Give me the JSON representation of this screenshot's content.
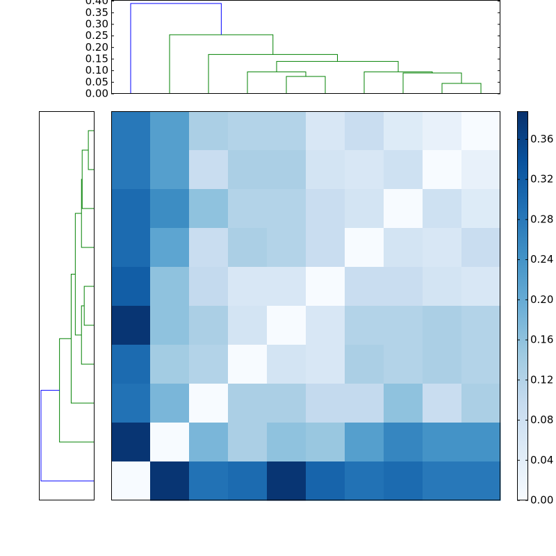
{
  "chart_data": [
    {
      "type": "dendrogram",
      "sides": [
        "top",
        "left"
      ],
      "icoord": [
        [
          45,
          45,
          55,
          55
        ],
        [
          35,
          35,
          50,
          50
        ],
        [
          85,
          85,
          95,
          95
        ],
        [
          75,
          75,
          90,
          90
        ],
        [
          65,
          65,
          82.5,
          82.5
        ],
        [
          42.5,
          42.5,
          73.75,
          73.75
        ],
        [
          25,
          25,
          58.125,
          58.125
        ],
        [
          15,
          15,
          41.5625,
          41.5625
        ],
        [
          5,
          5,
          28.28125,
          28.28125
        ]
      ],
      "dcoord": [
        [
          0,
          0.075,
          0.075,
          0
        ],
        [
          0,
          0.095,
          0.095,
          0.075
        ],
        [
          0,
          0.045,
          0.045,
          0
        ],
        [
          0,
          0.09,
          0.09,
          0.045
        ],
        [
          0,
          0.095,
          0.095,
          0.09
        ],
        [
          0.095,
          0.14,
          0.14,
          0.095
        ],
        [
          0,
          0.17,
          0.17,
          0.14
        ],
        [
          0,
          0.255,
          0.255,
          0.17
        ],
        [
          0,
          0.39,
          0.39,
          0.255
        ]
      ],
      "colors": [
        "#008000",
        "#008000",
        "#008000",
        "#008000",
        "#008000",
        "#008000",
        "#008000",
        "#008000",
        "#0000ff"
      ],
      "ylim": [
        0,
        0.405
      ],
      "yticks": [
        {
          "value": 0,
          "label": "0.00"
        },
        {
          "value": 0.05,
          "label": "0.05"
        },
        {
          "value": 0.1,
          "label": "0.10"
        },
        {
          "value": 0.15,
          "label": "0.15"
        },
        {
          "value": 0.2,
          "label": "0.20"
        },
        {
          "value": 0.25,
          "label": "0.25"
        },
        {
          "value": 0.3,
          "label": "0.30"
        },
        {
          "value": 0.35,
          "label": "0.35"
        },
        {
          "value": 0.4,
          "label": "0.40"
        }
      ]
    },
    {
      "type": "heatmap",
      "values": [
        [
          0.28,
          0.22,
          0.13,
          0.12,
          0.12,
          0.06,
          0.09,
          0.05,
          0.03,
          0.0
        ],
        [
          0.28,
          0.22,
          0.09,
          0.13,
          0.13,
          0.07,
          0.06,
          0.08,
          0.0,
          0.03
        ],
        [
          0.3,
          0.25,
          0.16,
          0.12,
          0.12,
          0.09,
          0.07,
          0.0,
          0.08,
          0.05
        ],
        [
          0.3,
          0.21,
          0.09,
          0.13,
          0.12,
          0.09,
          0.0,
          0.07,
          0.06,
          0.09
        ],
        [
          0.32,
          0.16,
          0.1,
          0.06,
          0.06,
          0.0,
          0.09,
          0.09,
          0.07,
          0.06
        ],
        [
          0.38,
          0.16,
          0.13,
          0.07,
          0.0,
          0.06,
          0.12,
          0.12,
          0.13,
          0.12
        ],
        [
          0.3,
          0.14,
          0.12,
          0.0,
          0.07,
          0.06,
          0.13,
          0.12,
          0.13,
          0.12
        ],
        [
          0.29,
          0.18,
          0.0,
          0.13,
          0.13,
          0.1,
          0.1,
          0.16,
          0.09,
          0.13
        ],
        [
          0.38,
          0.0,
          0.18,
          0.13,
          0.16,
          0.15,
          0.22,
          0.26,
          0.24,
          0.24
        ],
        [
          0.0,
          0.38,
          0.29,
          0.3,
          0.38,
          0.31,
          0.29,
          0.3,
          0.28,
          0.28
        ]
      ],
      "colormap": [
        "#f7fbff",
        "#deebf7",
        "#c6dbef",
        "#9ecae1",
        "#6baed6",
        "#4292c6",
        "#2171b5",
        "#08519c",
        "#08306b"
      ],
      "zlim": [
        0,
        0.388
      ],
      "zticks": [
        {
          "value": 0,
          "label": "0.00"
        },
        {
          "value": 0.04,
          "label": "0.04"
        },
        {
          "value": 0.08,
          "label": "0.08"
        },
        {
          "value": 0.12,
          "label": "0.12"
        },
        {
          "value": 0.16,
          "label": "0.16"
        },
        {
          "value": 0.2,
          "label": "0.20"
        },
        {
          "value": 0.24,
          "label": "0.24"
        },
        {
          "value": 0.28,
          "label": "0.28"
        },
        {
          "value": 0.32,
          "label": "0.32"
        },
        {
          "value": 0.36,
          "label": "0.36"
        }
      ]
    }
  ]
}
